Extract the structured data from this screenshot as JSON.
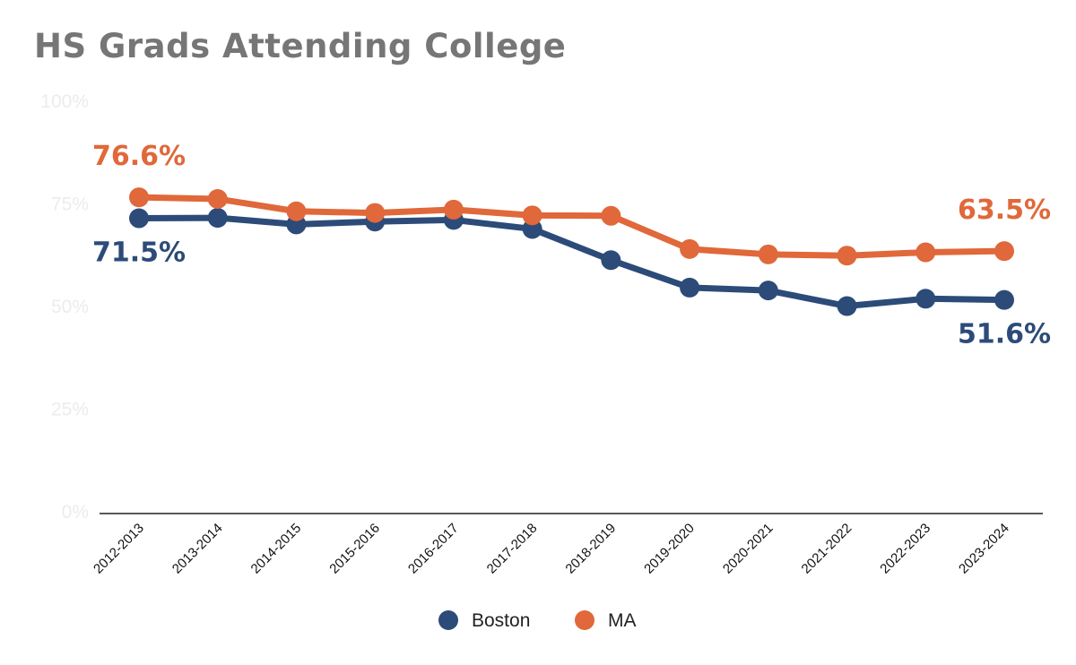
{
  "chart_data": {
    "type": "line",
    "title": "HS Grads Attending College",
    "xlabel": "",
    "ylabel": "",
    "ylim": [
      0,
      100
    ],
    "yticks": [
      "0%",
      "25%",
      "50%",
      "75%",
      "100%"
    ],
    "ytick_values": [
      0,
      25,
      50,
      75,
      100
    ],
    "categories": [
      "2012-2013",
      "2013-2014",
      "2014-2015",
      "2015-2016",
      "2016-2017",
      "2017-2018",
      "2018-2019",
      "2019-2020",
      "2020-2021",
      "2021-2022",
      "2022-2023",
      "2023-2024"
    ],
    "series": [
      {
        "name": "Boston",
        "color": "#2c4b78",
        "values": [
          71.5,
          71.6,
          70.0,
          70.7,
          71.1,
          68.9,
          61.3,
          54.6,
          53.9,
          50.1,
          51.9,
          51.6
        ],
        "labels": [
          {
            "index": 0,
            "text": "71.5%",
            "position": "below"
          },
          {
            "index": 11,
            "text": "51.6%",
            "position": "below"
          }
        ]
      },
      {
        "name": "MA",
        "color": "#e0683a",
        "values": [
          76.6,
          76.2,
          73.2,
          72.8,
          73.6,
          72.2,
          72.1,
          64.0,
          62.7,
          62.4,
          63.2,
          63.5
        ],
        "labels": [
          {
            "index": 0,
            "text": "76.6%",
            "position": "above"
          },
          {
            "index": 11,
            "text": "63.5%",
            "position": "above"
          }
        ]
      }
    ],
    "legend": {
      "placement": "bottom-center",
      "entries": [
        "Boston",
        "MA"
      ]
    },
    "grid": false
  }
}
